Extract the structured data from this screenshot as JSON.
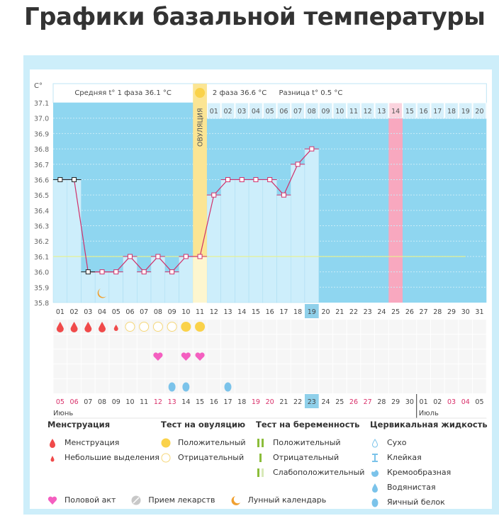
{
  "title": "Графики базальной температуры",
  "header": {
    "unit": "C°",
    "phase1": "Средняя t° 1 фаза 36.1 °C",
    "phase2": "2 фаза 36.6 °C",
    "diff": "Разница t° 0.5 °C",
    "ovulation_label": "ОВУЛЯЦИЯ"
  },
  "chart_data": {
    "type": "line",
    "ylabel": "C°",
    "ylim": [
      35.8,
      37.1
    ],
    "yticks": [
      "37.1",
      "37.0",
      "36.9",
      "36.8",
      "36.7",
      "36.6",
      "36.5",
      "36.4",
      "36.3",
      "36.2",
      "36.1",
      "36.0",
      "35.9",
      "35.8"
    ],
    "cycle_days": [
      "01",
      "02",
      "03",
      "04",
      "05",
      "06",
      "07",
      "08",
      "09",
      "10",
      "11",
      "12",
      "13",
      "14",
      "15",
      "16",
      "17",
      "18",
      "19",
      "20",
      "21",
      "22",
      "23",
      "24",
      "25",
      "26",
      "27",
      "28",
      "29",
      "30",
      "31"
    ],
    "current_day": "19",
    "phase2_days": [
      "01",
      "02",
      "03",
      "04",
      "05",
      "06",
      "07",
      "08",
      "09",
      "10",
      "11",
      "12",
      "13",
      "14",
      "15",
      "16",
      "17",
      "18",
      "19",
      "20"
    ],
    "phase2_highlight": "14",
    "temperatures": [
      36.6,
      36.6,
      36.0,
      36.0,
      36.0,
      36.1,
      36.0,
      36.1,
      36.0,
      36.1,
      36.1,
      36.5,
      36.6,
      36.6,
      36.6,
      36.6,
      36.5,
      36.7,
      36.8
    ],
    "coverline": 36.1,
    "ovulation_day": 11,
    "expected_period_day": 25,
    "dates": [
      "05",
      "06",
      "07",
      "08",
      "09",
      "10",
      "11",
      "12",
      "13",
      "14",
      "15",
      "16",
      "17",
      "18",
      "19",
      "20",
      "21",
      "22",
      "23",
      "24",
      "25",
      "26",
      "27",
      "28",
      "29",
      "30",
      "01",
      "02",
      "03",
      "04",
      "05"
    ],
    "weekend_dates_idx": [
      0,
      1,
      7,
      8,
      14,
      15,
      21,
      22,
      28,
      29
    ],
    "today_date": "23",
    "months": [
      "Июнь",
      "Июль"
    ],
    "menstruation_days": [
      1,
      2,
      3,
      4
    ],
    "spotting_days": [
      5
    ],
    "ovulation_test_negative_days": [
      6,
      7,
      8,
      9
    ],
    "ovulation_test_positive_days": [
      10,
      11
    ],
    "intercourse_days": [
      8,
      10,
      11
    ],
    "cervical_egg_white_days": [
      9,
      10,
      13
    ],
    "moon_days": [
      4
    ],
    "colors": {
      "bg": "#8fd6f0",
      "bar": "#cdeefb",
      "line": "#d0306a",
      "ovulation": "#fbe594",
      "period": "#f8a8bf",
      "coverline": "#e9f28a",
      "current": "#8fd0ea"
    }
  },
  "legend": {
    "menstruation": {
      "title": "Менструация",
      "items": [
        "Менструация",
        "Небольшие выделения"
      ]
    },
    "ovulation_test": {
      "title": "Тест на овуляцию",
      "items": [
        "Положительный",
        "Отрицательный"
      ]
    },
    "pregnancy_test": {
      "title": "Тест на беременность",
      "items": [
        "Положительный",
        "Отрицательный",
        "Слабоположительный"
      ]
    },
    "cervical": {
      "title": "Цервикальная жидкость",
      "items": [
        "Сухо",
        "Клейкая",
        "Кремообразная",
        "Водянистая",
        "Яичный белок"
      ]
    },
    "other": [
      "Половой акт",
      "Прием лекарств",
      "Лунный календарь"
    ]
  }
}
